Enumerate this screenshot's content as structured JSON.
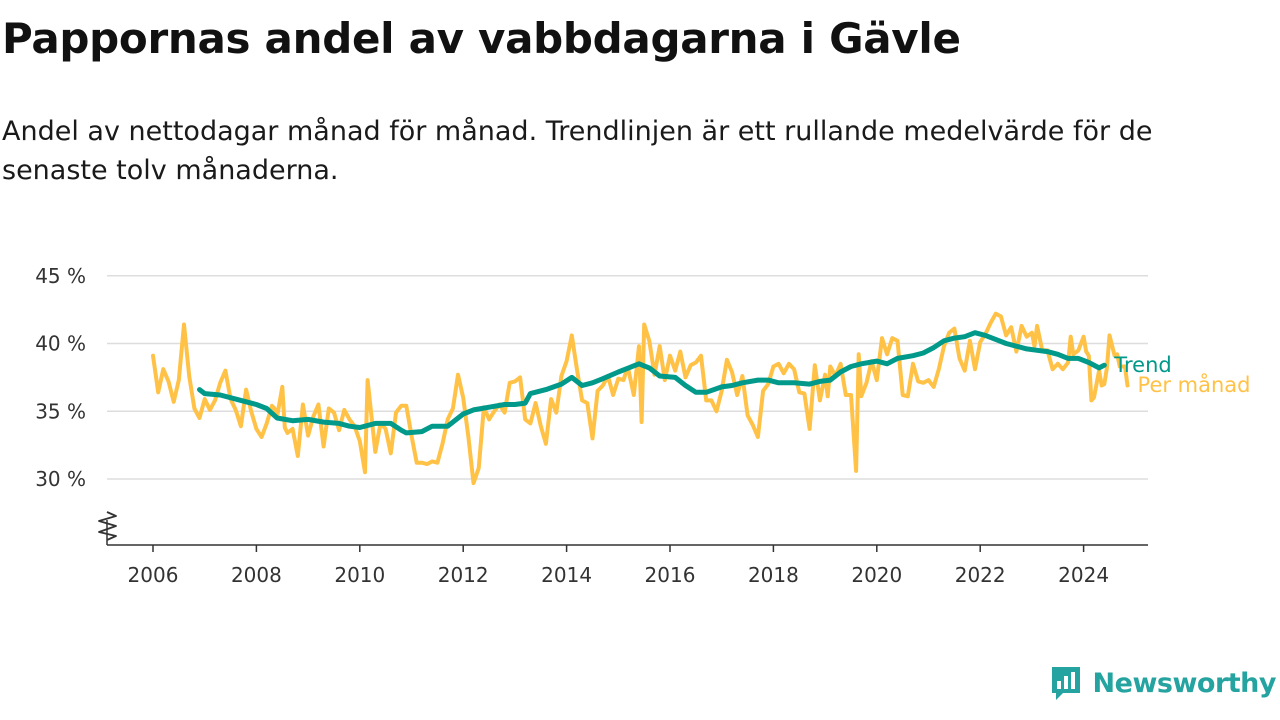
{
  "header": {
    "title": "Pappornas andel av vabbdagarna i Gävle",
    "subtitle": "Andel av nettodagar månad för månad. Trendlinjen är ett rullande medelvärde för de senaste tolv månaderna."
  },
  "brand": {
    "name": "Newsworthy",
    "icon": "newsworthy-logo-icon",
    "color": "#24a3a0"
  },
  "colors": {
    "trend": "#00998a",
    "monthly": "#ffc246",
    "grid": "#dddddd",
    "axis": "#333333"
  },
  "chart_data": {
    "type": "line",
    "title": "Pappornas andel av vabbdagarna i Gävle",
    "subtitle": "Andel av nettodagar månad för månad. Trendlinjen är ett rullande medelvärde för de senaste tolv månaderna.",
    "xlabel": "",
    "ylabel": "",
    "y_unit": " %",
    "x_range": [
      2005.0,
      2025.2
    ],
    "y_range": [
      25,
      45
    ],
    "y_axis_broken": true,
    "y_ticks": [
      30,
      35,
      40,
      45
    ],
    "x_ticks": [
      2006,
      2008,
      2010,
      2012,
      2014,
      2016,
      2018,
      2020,
      2022,
      2024
    ],
    "grid": "horizontal",
    "legend": "inline labels at right end of lines",
    "series": [
      {
        "name": "Trend",
        "color": "#00998a",
        "points": [
          [
            2006.9,
            36.6
          ],
          [
            2007.0,
            36.3
          ],
          [
            2007.3,
            36.2
          ],
          [
            2007.6,
            35.9
          ],
          [
            2008.0,
            35.5
          ],
          [
            2008.2,
            35.2
          ],
          [
            2008.4,
            34.5
          ],
          [
            2008.7,
            34.3
          ],
          [
            2009.0,
            34.4
          ],
          [
            2009.3,
            34.2
          ],
          [
            2009.6,
            34.1
          ],
          [
            2009.8,
            33.9
          ],
          [
            2010.0,
            33.8
          ],
          [
            2010.3,
            34.1
          ],
          [
            2010.6,
            34.1
          ],
          [
            2010.8,
            33.6
          ],
          [
            2010.9,
            33.4
          ],
          [
            2011.2,
            33.5
          ],
          [
            2011.4,
            33.9
          ],
          [
            2011.7,
            33.9
          ],
          [
            2012.0,
            34.8
          ],
          [
            2012.2,
            35.1
          ],
          [
            2012.5,
            35.3
          ],
          [
            2012.8,
            35.5
          ],
          [
            2013.0,
            35.5
          ],
          [
            2013.2,
            35.6
          ],
          [
            2013.3,
            36.3
          ],
          [
            2013.6,
            36.6
          ],
          [
            2013.9,
            37.0
          ],
          [
            2014.1,
            37.5
          ],
          [
            2014.3,
            36.9
          ],
          [
            2014.5,
            37.1
          ],
          [
            2014.7,
            37.4
          ],
          [
            2015.0,
            37.9
          ],
          [
            2015.2,
            38.2
          ],
          [
            2015.4,
            38.5
          ],
          [
            2015.6,
            38.2
          ],
          [
            2015.8,
            37.6
          ],
          [
            2016.1,
            37.5
          ],
          [
            2016.3,
            36.9
          ],
          [
            2016.5,
            36.4
          ],
          [
            2016.7,
            36.4
          ],
          [
            2017.0,
            36.8
          ],
          [
            2017.2,
            36.9
          ],
          [
            2017.4,
            37.1
          ],
          [
            2017.7,
            37.3
          ],
          [
            2017.9,
            37.3
          ],
          [
            2018.1,
            37.1
          ],
          [
            2018.4,
            37.1
          ],
          [
            2018.7,
            37.0
          ],
          [
            2018.9,
            37.2
          ],
          [
            2019.1,
            37.3
          ],
          [
            2019.3,
            37.9
          ],
          [
            2019.5,
            38.3
          ],
          [
            2019.7,
            38.5
          ],
          [
            2020.0,
            38.7
          ],
          [
            2020.2,
            38.5
          ],
          [
            2020.4,
            38.9
          ],
          [
            2020.7,
            39.1
          ],
          [
            2020.9,
            39.3
          ],
          [
            2021.1,
            39.7
          ],
          [
            2021.3,
            40.2
          ],
          [
            2021.5,
            40.4
          ],
          [
            2021.7,
            40.5
          ],
          [
            2021.9,
            40.8
          ],
          [
            2022.1,
            40.6
          ],
          [
            2022.3,
            40.3
          ],
          [
            2022.5,
            40.0
          ],
          [
            2022.7,
            39.8
          ],
          [
            2022.9,
            39.6
          ],
          [
            2023.1,
            39.5
          ],
          [
            2023.3,
            39.4
          ],
          [
            2023.5,
            39.2
          ],
          [
            2023.7,
            38.9
          ],
          [
            2023.9,
            38.9
          ],
          [
            2024.1,
            38.6
          ],
          [
            2024.3,
            38.2
          ],
          [
            2024.4,
            38.4
          ]
        ]
      },
      {
        "name": "Per månad",
        "color": "#ffc246",
        "points": [
          [
            2006.0,
            39.1
          ],
          [
            2006.1,
            36.4
          ],
          [
            2006.2,
            38.1
          ],
          [
            2006.3,
            37.2
          ],
          [
            2006.4,
            35.7
          ],
          [
            2006.5,
            37.3
          ],
          [
            2006.6,
            41.4
          ],
          [
            2006.7,
            37.6
          ],
          [
            2006.8,
            35.2
          ],
          [
            2006.9,
            34.5
          ],
          [
            2007.0,
            35.9
          ],
          [
            2007.1,
            35.1
          ],
          [
            2007.2,
            35.8
          ],
          [
            2007.3,
            37.1
          ],
          [
            2007.4,
            38.0
          ],
          [
            2007.5,
            35.9
          ],
          [
            2007.6,
            35.1
          ],
          [
            2007.7,
            33.9
          ],
          [
            2007.8,
            36.6
          ],
          [
            2007.9,
            35.0
          ],
          [
            2008.0,
            33.7
          ],
          [
            2008.1,
            33.1
          ],
          [
            2008.2,
            34.1
          ],
          [
            2008.3,
            35.4
          ],
          [
            2008.35,
            35.2
          ],
          [
            2008.4,
            34.6
          ],
          [
            2008.5,
            36.8
          ],
          [
            2008.55,
            33.8
          ],
          [
            2008.6,
            33.4
          ],
          [
            2008.7,
            33.7
          ],
          [
            2008.8,
            31.7
          ],
          [
            2008.9,
            35.5
          ],
          [
            2009.0,
            33.2
          ],
          [
            2009.1,
            34.6
          ],
          [
            2009.2,
            35.5
          ],
          [
            2009.3,
            32.4
          ],
          [
            2009.4,
            35.2
          ],
          [
            2009.5,
            34.9
          ],
          [
            2009.6,
            33.6
          ],
          [
            2009.7,
            35.1
          ],
          [
            2009.8,
            34.4
          ],
          [
            2009.9,
            33.9
          ],
          [
            2010.0,
            32.8
          ],
          [
            2010.1,
            30.5
          ],
          [
            2010.15,
            37.3
          ],
          [
            2010.3,
            32.0
          ],
          [
            2010.4,
            34.1
          ],
          [
            2010.5,
            33.7
          ],
          [
            2010.6,
            31.9
          ],
          [
            2010.7,
            34.9
          ],
          [
            2010.8,
            35.4
          ],
          [
            2010.9,
            35.4
          ],
          [
            2011.0,
            33.2
          ],
          [
            2011.1,
            31.2
          ],
          [
            2011.2,
            31.2
          ],
          [
            2011.3,
            31.1
          ],
          [
            2011.4,
            31.3
          ],
          [
            2011.5,
            31.2
          ],
          [
            2011.6,
            32.6
          ],
          [
            2011.7,
            34.4
          ],
          [
            2011.8,
            35.2
          ],
          [
            2011.9,
            37.7
          ],
          [
            2012.0,
            36.0
          ],
          [
            2012.1,
            33.1
          ],
          [
            2012.2,
            29.7
          ],
          [
            2012.3,
            30.8
          ],
          [
            2012.4,
            35.3
          ],
          [
            2012.5,
            34.4
          ],
          [
            2012.6,
            35.0
          ],
          [
            2012.7,
            35.5
          ],
          [
            2012.8,
            34.9
          ],
          [
            2012.9,
            37.1
          ],
          [
            2013.0,
            37.2
          ],
          [
            2013.1,
            37.5
          ],
          [
            2013.2,
            34.4
          ],
          [
            2013.3,
            34.1
          ],
          [
            2013.4,
            35.6
          ],
          [
            2013.5,
            33.9
          ],
          [
            2013.6,
            32.6
          ],
          [
            2013.7,
            35.9
          ],
          [
            2013.8,
            34.9
          ],
          [
            2013.9,
            37.6
          ],
          [
            2014.0,
            38.7
          ],
          [
            2014.1,
            40.6
          ],
          [
            2014.2,
            38.1
          ],
          [
            2014.3,
            35.8
          ],
          [
            2014.4,
            35.6
          ],
          [
            2014.5,
            33.0
          ],
          [
            2014.6,
            36.5
          ],
          [
            2014.7,
            36.9
          ],
          [
            2014.8,
            37.6
          ],
          [
            2014.9,
            36.2
          ],
          [
            2015.0,
            37.4
          ],
          [
            2015.1,
            37.3
          ],
          [
            2015.15,
            37.9
          ],
          [
            2015.2,
            38.0
          ],
          [
            2015.3,
            36.2
          ],
          [
            2015.4,
            39.8
          ],
          [
            2015.45,
            34.2
          ],
          [
            2015.5,
            41.4
          ],
          [
            2015.6,
            40.2
          ],
          [
            2015.7,
            37.7
          ],
          [
            2015.8,
            39.8
          ],
          [
            2015.9,
            37.3
          ],
          [
            2016.0,
            39.1
          ],
          [
            2016.1,
            38.0
          ],
          [
            2016.2,
            39.4
          ],
          [
            2016.3,
            37.5
          ],
          [
            2016.4,
            38.4
          ],
          [
            2016.5,
            38.6
          ],
          [
            2016.6,
            39.1
          ],
          [
            2016.7,
            35.8
          ],
          [
            2016.8,
            35.8
          ],
          [
            2016.9,
            35.0
          ],
          [
            2017.0,
            36.5
          ],
          [
            2017.1,
            38.8
          ],
          [
            2017.2,
            37.9
          ],
          [
            2017.3,
            36.2
          ],
          [
            2017.4,
            37.6
          ],
          [
            2017.5,
            34.7
          ],
          [
            2017.6,
            34.0
          ],
          [
            2017.7,
            33.1
          ],
          [
            2017.8,
            36.5
          ],
          [
            2017.9,
            37.0
          ],
          [
            2018.0,
            38.3
          ],
          [
            2018.1,
            38.5
          ],
          [
            2018.2,
            37.8
          ],
          [
            2018.3,
            38.5
          ],
          [
            2018.4,
            38.1
          ],
          [
            2018.5,
            36.4
          ],
          [
            2018.6,
            36.3
          ],
          [
            2018.7,
            33.7
          ],
          [
            2018.8,
            38.4
          ],
          [
            2018.9,
            35.8
          ],
          [
            2019.0,
            37.7
          ],
          [
            2019.05,
            36.1
          ],
          [
            2019.1,
            38.3
          ],
          [
            2019.2,
            37.6
          ],
          [
            2019.3,
            38.5
          ],
          [
            2019.4,
            36.2
          ],
          [
            2019.5,
            36.2
          ],
          [
            2019.6,
            30.6
          ],
          [
            2019.65,
            39.2
          ],
          [
            2019.7,
            36.1
          ],
          [
            2019.8,
            37.1
          ],
          [
            2019.9,
            38.7
          ],
          [
            2020.0,
            37.3
          ],
          [
            2020.1,
            40.4
          ],
          [
            2020.2,
            39.2
          ],
          [
            2020.3,
            40.4
          ],
          [
            2020.4,
            40.2
          ],
          [
            2020.5,
            36.2
          ],
          [
            2020.6,
            36.1
          ],
          [
            2020.7,
            38.5
          ],
          [
            2020.8,
            37.2
          ],
          [
            2020.9,
            37.1
          ],
          [
            2021.0,
            37.3
          ],
          [
            2021.1,
            36.8
          ],
          [
            2021.2,
            38.1
          ],
          [
            2021.3,
            39.8
          ],
          [
            2021.4,
            40.8
          ],
          [
            2021.5,
            41.1
          ],
          [
            2021.6,
            38.9
          ],
          [
            2021.7,
            38.0
          ],
          [
            2021.8,
            40.2
          ],
          [
            2021.9,
            38.1
          ],
          [
            2022.0,
            40.1
          ],
          [
            2022.1,
            40.7
          ],
          [
            2022.2,
            41.5
          ],
          [
            2022.3,
            42.2
          ],
          [
            2022.4,
            42.0
          ],
          [
            2022.5,
            40.6
          ],
          [
            2022.6,
            41.2
          ],
          [
            2022.7,
            39.4
          ],
          [
            2022.8,
            41.3
          ],
          [
            2022.9,
            40.5
          ],
          [
            2023.0,
            40.8
          ],
          [
            2023.05,
            39.8
          ],
          [
            2023.1,
            41.3
          ],
          [
            2023.2,
            39.5
          ],
          [
            2023.3,
            39.5
          ],
          [
            2023.4,
            38.1
          ],
          [
            2023.5,
            38.5
          ],
          [
            2023.6,
            38.1
          ],
          [
            2023.7,
            38.6
          ],
          [
            2023.75,
            40.5
          ],
          [
            2023.8,
            39.2
          ],
          [
            2023.9,
            39.5
          ],
          [
            2024.0,
            40.5
          ],
          [
            2024.05,
            39.4
          ],
          [
            2024.1,
            39.1
          ],
          [
            2024.15,
            35.8
          ],
          [
            2024.2,
            36.0
          ],
          [
            2024.3,
            38.0
          ],
          [
            2024.35,
            36.9
          ],
          [
            2024.4,
            37.0
          ],
          [
            2024.45,
            38.2
          ],
          [
            2024.5,
            40.6
          ],
          [
            2024.6,
            39.1
          ],
          [
            2024.65,
            39.2
          ],
          [
            2024.7,
            38.3
          ],
          [
            2024.8,
            38.3
          ],
          [
            2024.85,
            36.9
          ]
        ]
      }
    ]
  }
}
